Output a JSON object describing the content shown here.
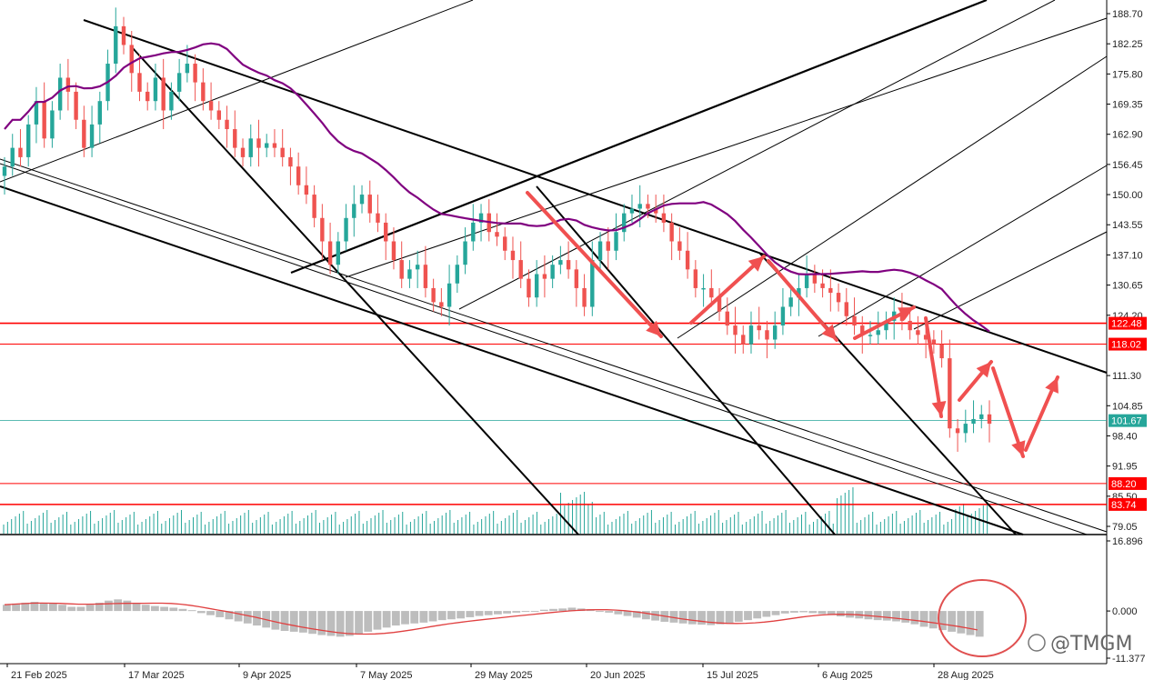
{
  "chart_data": [
    {
      "type": "candlestick",
      "price_axis_ticks": [
        "188.70",
        "182.25",
        "175.80",
        "169.35",
        "162.90",
        "156.45",
        "150.00",
        "143.55",
        "137.10",
        "130.65",
        "124.20",
        "111.30",
        "104.85",
        "98.40",
        "91.95",
        "85.50",
        "79.05"
      ],
      "ylim": [
        74.0,
        191.0
      ],
      "date_ticks": [
        "21 Feb 2025",
        "17 Mar 2025",
        "9 Apr 2025",
        "7 May 2025",
        "29 May 2025",
        "20 Jun 2025",
        "15 Jul 2025",
        "6 Aug 2025",
        "28 Aug 2025"
      ],
      "price_levels": [
        {
          "value": 122.48,
          "label": "122.48",
          "color": "#ff0000"
        },
        {
          "value": 118.02,
          "label": "118.02",
          "color": "#ff0000"
        },
        {
          "value": 88.2,
          "label": "88.20",
          "color": "#ff0000"
        },
        {
          "value": 83.74,
          "label": "83.74",
          "color": "#ff0000"
        }
      ],
      "current_price": {
        "value": 101.67,
        "label": "101.67",
        "color": "#26a69a"
      },
      "candles_close": [
        156,
        160,
        158,
        165,
        170,
        162,
        168,
        175,
        172,
        166,
        160,
        165,
        170,
        178,
        186,
        182,
        176,
        172,
        170,
        175,
        168,
        172,
        176,
        178,
        174,
        170,
        168,
        166,
        164,
        160,
        158,
        162,
        160,
        161,
        160,
        158,
        156,
        152,
        150,
        145,
        140,
        135,
        140,
        145,
        148,
        150,
        146,
        144,
        140,
        136,
        132,
        134,
        135,
        130,
        127,
        126,
        131,
        135,
        140,
        144,
        146,
        142,
        141,
        138,
        136,
        132,
        128,
        133,
        132,
        135,
        136,
        134,
        130,
        126,
        136,
        140,
        138,
        142,
        146,
        147,
        148,
        147,
        146,
        144,
        140,
        138,
        134,
        130,
        130,
        128,
        125,
        122,
        120,
        118,
        122,
        121,
        119,
        122,
        126,
        128,
        130,
        133,
        131,
        130,
        129,
        127,
        124,
        122,
        120,
        120,
        121,
        123,
        125,
        123,
        121,
        120,
        119,
        118,
        115,
        100,
        99,
        101,
        102,
        103,
        101
      ],
      "volume_note": "volume histogram bars along bottom of price panel",
      "moving_average_color": "#800080",
      "arrows_color": "#f05050"
    },
    {
      "type": "bar",
      "role": "oscillator",
      "axis_ticks": [
        "16.896",
        "0.000",
        "-11.377"
      ],
      "ylim": [
        -11.377,
        16.896
      ],
      "histogram_values": [
        1.5,
        1.8,
        2.0,
        2.2,
        2.0,
        1.8,
        1.5,
        1.0,
        1.0,
        1.5,
        2.0,
        2.5,
        2.8,
        2.5,
        2.0,
        1.5,
        1.2,
        1.0,
        0.8,
        0.5,
        0.2,
        -0.5,
        -1.0,
        -1.5,
        -2.0,
        -2.5,
        -3.0,
        -3.5,
        -4.0,
        -4.5,
        -4.8,
        -5.0,
        -5.2,
        -5.5,
        -5.8,
        -6.0,
        -6.2,
        -6.0,
        -5.5,
        -5.0,
        -4.5,
        -4.0,
        -3.5,
        -3.2,
        -3.0,
        -2.8,
        -2.5,
        -2.2,
        -2.0,
        -1.8,
        -1.5,
        -1.2,
        -1.0,
        -0.8,
        -0.6,
        -0.4,
        -0.2,
        0.0,
        0.3,
        0.5,
        0.6,
        0.8,
        0.6,
        0.4,
        0.0,
        -0.4,
        -0.8,
        -1.2,
        -1.6,
        -2.0,
        -2.3,
        -2.6,
        -2.8,
        -3.0,
        -3.2,
        -3.3,
        -3.4,
        -3.2,
        -3.0,
        -2.6,
        -2.2,
        -1.8,
        -1.4,
        -1.0,
        -0.6,
        -0.4,
        -0.3,
        -0.5,
        -0.7,
        -1.0,
        -1.3,
        -1.6,
        -1.8,
        -2.0,
        -2.2,
        -2.3,
        -2.5,
        -2.8,
        -3.2,
        -3.8,
        -4.2,
        -4.6,
        -5.0,
        -5.4,
        -5.8,
        -6.2
      ],
      "signal_color": "#e04040",
      "histogram_color": "#bdbdbd"
    }
  ],
  "watermark": "@TMGM",
  "annotation_circle_color": "#e05050"
}
